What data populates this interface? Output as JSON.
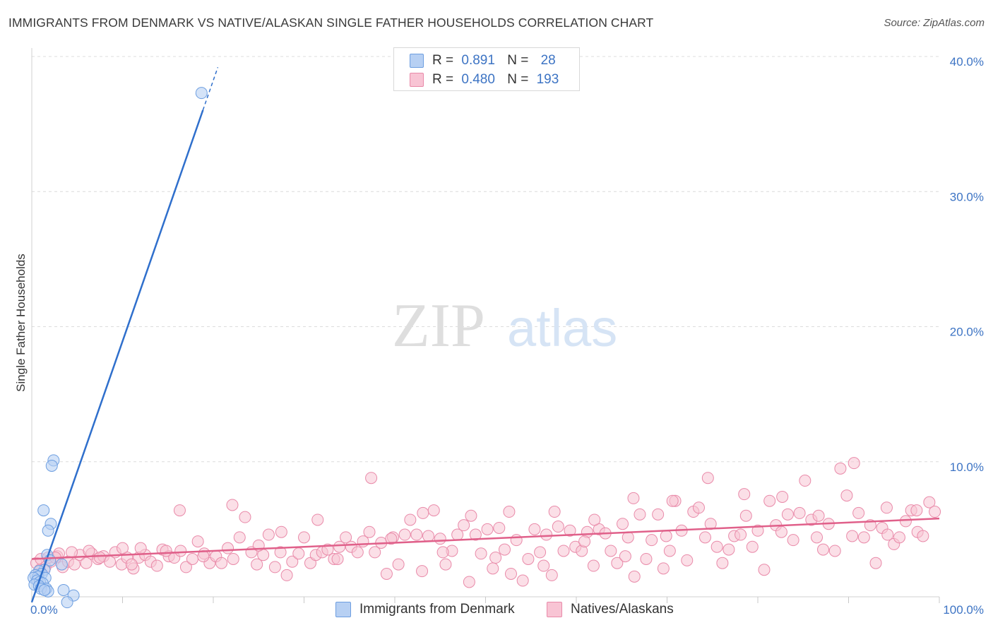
{
  "title": "IMMIGRANTS FROM DENMARK VS NATIVE/ALASKAN SINGLE FATHER HOUSEHOLDS CORRELATION CHART",
  "source": "Source: ZipAtlas.com",
  "watermark": {
    "zip": "ZIP",
    "atlas": "atlas"
  },
  "legend": [
    {
      "r_label": "R =",
      "r_value": "0.891",
      "n_label": "N =",
      "n_value": "28"
    },
    {
      "r_label": "R =",
      "r_value": "0.480",
      "n_label": "N =",
      "n_value": "193"
    }
  ],
  "colors": {
    "blue_fill": "#b7d0f3",
    "blue_stroke": "#6d9ee0",
    "blue_line": "#2f6fcc",
    "pink_fill": "#f8c4d4",
    "pink_stroke": "#e98aa9",
    "pink_line": "#e0608a",
    "axis_text": "#3d74c4",
    "grid": "#dcdcdc"
  },
  "chart_data": {
    "type": "scatter",
    "title": "IMMIGRANTS FROM DENMARK VS NATIVE/ALASKAN SINGLE FATHER HOUSEHOLDS CORRELATION CHART",
    "xlabel": "",
    "ylabel": "Single Father Households",
    "xlim": [
      0,
      100
    ],
    "ylim": [
      0,
      40
    ],
    "x_tick_labels": [
      "0.0%",
      "100.0%"
    ],
    "y_ticks": [
      10,
      20,
      30,
      40
    ],
    "y_tick_labels": [
      "10.0%",
      "20.0%",
      "30.0%",
      "40.0%"
    ],
    "legend_position": "top-center",
    "series": [
      {
        "name": "Immigrants from Denmark",
        "r": 0.891,
        "n": 28,
        "points": [
          [
            18.7,
            37.3
          ],
          [
            2.4,
            10.1
          ],
          [
            2.2,
            9.7
          ],
          [
            1.3,
            6.4
          ],
          [
            2.1,
            5.4
          ],
          [
            1.8,
            4.9
          ],
          [
            1.7,
            3.1
          ],
          [
            2.0,
            2.7
          ],
          [
            3.3,
            2.4
          ],
          [
            1.4,
            2.0
          ],
          [
            0.8,
            1.9
          ],
          [
            1.1,
            1.7
          ],
          [
            0.4,
            1.6
          ],
          [
            0.7,
            1.5
          ],
          [
            1.5,
            1.4
          ],
          [
            0.2,
            1.4
          ],
          [
            0.6,
            1.2
          ],
          [
            0.9,
            1.1
          ],
          [
            1.2,
            1.0
          ],
          [
            0.3,
            0.9
          ],
          [
            1.6,
            0.6
          ],
          [
            0.8,
            0.8
          ],
          [
            1.0,
            0.6
          ],
          [
            1.8,
            0.4
          ],
          [
            1.4,
            0.5
          ],
          [
            3.5,
            0.5
          ],
          [
            4.6,
            0.1
          ],
          [
            3.9,
            -0.4
          ]
        ],
        "trend": [
          [
            0.0,
            -0.4
          ],
          [
            20.5,
            39.2
          ]
        ]
      },
      {
        "name": "Natives/Alaskans",
        "r": 0.48,
        "n": 193,
        "points": [
          [
            0.5,
            2.5
          ],
          [
            1.0,
            2.8
          ],
          [
            1.5,
            2.2
          ],
          [
            2.1,
            2.6
          ],
          [
            2.8,
            3.0
          ],
          [
            3.4,
            2.2
          ],
          [
            4.0,
            2.6
          ],
          [
            4.7,
            2.4
          ],
          [
            5.3,
            3.1
          ],
          [
            6.0,
            2.5
          ],
          [
            6.6,
            3.2
          ],
          [
            7.3,
            2.8
          ],
          [
            7.9,
            3.0
          ],
          [
            8.6,
            2.6
          ],
          [
            9.2,
            3.3
          ],
          [
            9.9,
            2.4
          ],
          [
            10.5,
            2.9
          ],
          [
            11.2,
            2.1
          ],
          [
            11.8,
            2.9
          ],
          [
            12.5,
            3.1
          ],
          [
            13.1,
            2.6
          ],
          [
            13.8,
            2.3
          ],
          [
            14.4,
            3.5
          ],
          [
            15.1,
            3.0
          ],
          [
            15.7,
            2.9
          ],
          [
            16.4,
            3.4
          ],
          [
            17.0,
            2.2
          ],
          [
            17.7,
            2.8
          ],
          [
            18.3,
            4.1
          ],
          [
            19.0,
            3.2
          ],
          [
            19.6,
            2.5
          ],
          [
            20.3,
            3.0
          ],
          [
            20.9,
            2.5
          ],
          [
            21.6,
            3.6
          ],
          [
            22.2,
            2.8
          ],
          [
            22.9,
            4.4
          ],
          [
            23.5,
            5.9
          ],
          [
            24.2,
            3.3
          ],
          [
            24.8,
            2.4
          ],
          [
            25.5,
            3.1
          ],
          [
            26.1,
            4.6
          ],
          [
            26.8,
            2.2
          ],
          [
            27.4,
            3.3
          ],
          [
            28.1,
            1.6
          ],
          [
            28.7,
            2.6
          ],
          [
            29.4,
            3.2
          ],
          [
            30.0,
            4.4
          ],
          [
            30.7,
            2.5
          ],
          [
            31.3,
            3.1
          ],
          [
            32.0,
            3.3
          ],
          [
            32.6,
            3.5
          ],
          [
            33.3,
            2.8
          ],
          [
            33.9,
            3.7
          ],
          [
            34.6,
            4.4
          ],
          [
            35.2,
            3.7
          ],
          [
            35.9,
            3.3
          ],
          [
            36.5,
            4.1
          ],
          [
            37.2,
            4.8
          ],
          [
            37.8,
            3.3
          ],
          [
            38.5,
            4.0
          ],
          [
            39.1,
            1.7
          ],
          [
            39.8,
            4.4
          ],
          [
            40.4,
            2.4
          ],
          [
            41.1,
            4.6
          ],
          [
            41.7,
            5.7
          ],
          [
            42.4,
            4.6
          ],
          [
            43.0,
            1.9
          ],
          [
            43.7,
            4.5
          ],
          [
            44.3,
            6.4
          ],
          [
            45.0,
            4.3
          ],
          [
            45.6,
            2.4
          ],
          [
            46.3,
            3.4
          ],
          [
            46.9,
            4.6
          ],
          [
            47.6,
            5.3
          ],
          [
            48.2,
            1.1
          ],
          [
            48.9,
            4.6
          ],
          [
            49.5,
            3.2
          ],
          [
            50.2,
            5.0
          ],
          [
            50.8,
            2.1
          ],
          [
            51.5,
            5.1
          ],
          [
            52.1,
            3.5
          ],
          [
            52.8,
            1.7
          ],
          [
            53.4,
            4.2
          ],
          [
            54.1,
            1.2
          ],
          [
            54.7,
            2.8
          ],
          [
            55.4,
            5.0
          ],
          [
            56.0,
            3.3
          ],
          [
            56.7,
            4.6
          ],
          [
            57.3,
            1.6
          ],
          [
            58.0,
            5.2
          ],
          [
            58.6,
            3.4
          ],
          [
            59.3,
            4.9
          ],
          [
            59.9,
            3.7
          ],
          [
            60.6,
            3.4
          ],
          [
            61.2,
            4.8
          ],
          [
            61.9,
            2.3
          ],
          [
            62.5,
            5.0
          ],
          [
            63.2,
            4.7
          ],
          [
            63.8,
            3.4
          ],
          [
            64.5,
            2.5
          ],
          [
            65.1,
            5.4
          ],
          [
            65.7,
            4.4
          ],
          [
            66.4,
            1.5
          ],
          [
            67.0,
            6.1
          ],
          [
            67.7,
            2.8
          ],
          [
            68.3,
            4.2
          ],
          [
            69.0,
            6.1
          ],
          [
            69.6,
            2.1
          ],
          [
            70.3,
            3.4
          ],
          [
            70.9,
            7.1
          ],
          [
            71.6,
            4.9
          ],
          [
            72.2,
            2.7
          ],
          [
            72.9,
            6.3
          ],
          [
            73.5,
            6.6
          ],
          [
            74.2,
            4.4
          ],
          [
            74.8,
            5.4
          ],
          [
            75.5,
            3.7
          ],
          [
            76.1,
            2.5
          ],
          [
            76.8,
            3.5
          ],
          [
            77.4,
            4.5
          ],
          [
            78.1,
            4.6
          ],
          [
            78.7,
            6.0
          ],
          [
            79.4,
            3.7
          ],
          [
            80.0,
            4.9
          ],
          [
            80.7,
            2.0
          ],
          [
            81.3,
            7.1
          ],
          [
            82.0,
            5.3
          ],
          [
            82.6,
            4.8
          ],
          [
            83.3,
            6.1
          ],
          [
            83.9,
            4.2
          ],
          [
            84.6,
            6.2
          ],
          [
            85.2,
            8.6
          ],
          [
            85.9,
            5.7
          ],
          [
            86.5,
            4.4
          ],
          [
            87.2,
            3.5
          ],
          [
            87.8,
            5.4
          ],
          [
            88.5,
            3.4
          ],
          [
            89.1,
            9.5
          ],
          [
            89.8,
            7.5
          ],
          [
            90.4,
            4.5
          ],
          [
            91.1,
            6.2
          ],
          [
            91.7,
            4.4
          ],
          [
            92.4,
            5.3
          ],
          [
            93.0,
            2.5
          ],
          [
            93.7,
            5.1
          ],
          [
            94.3,
            4.6
          ],
          [
            95.0,
            3.9
          ],
          [
            95.6,
            4.4
          ],
          [
            96.3,
            5.6
          ],
          [
            96.9,
            6.4
          ],
          [
            97.6,
            4.8
          ],
          [
            98.2,
            4.5
          ],
          [
            98.9,
            7.0
          ],
          [
            99.5,
            6.3
          ],
          [
            1.8,
            2.9
          ],
          [
            3.0,
            3.2
          ],
          [
            6.3,
            3.4
          ],
          [
            10.0,
            3.6
          ],
          [
            12.0,
            3.6
          ],
          [
            16.3,
            6.4
          ],
          [
            22.1,
            6.8
          ],
          [
            27.5,
            4.8
          ],
          [
            31.5,
            5.7
          ],
          [
            37.4,
            8.8
          ],
          [
            43.1,
            6.2
          ],
          [
            48.4,
            6.0
          ],
          [
            52.6,
            6.3
          ],
          [
            57.6,
            6.3
          ],
          [
            62.0,
            5.7
          ],
          [
            66.3,
            7.3
          ],
          [
            70.6,
            7.1
          ],
          [
            74.5,
            8.8
          ],
          [
            78.5,
            7.6
          ],
          [
            82.7,
            7.4
          ],
          [
            86.7,
            6.0
          ],
          [
            90.6,
            9.9
          ],
          [
            94.2,
            6.6
          ],
          [
            97.5,
            6.4
          ],
          [
            0.9,
            2.0
          ],
          [
            2.6,
            2.9
          ],
          [
            4.4,
            3.3
          ],
          [
            7.5,
            2.9
          ],
          [
            11.0,
            2.4
          ],
          [
            14.8,
            3.4
          ],
          [
            18.9,
            3.0
          ],
          [
            25.0,
            3.8
          ],
          [
            33.7,
            2.8
          ],
          [
            39.6,
            4.3
          ],
          [
            45.3,
            3.3
          ],
          [
            51.1,
            2.9
          ],
          [
            56.4,
            2.3
          ],
          [
            60.9,
            4.1
          ],
          [
            65.4,
            3.0
          ],
          [
            69.9,
            4.5
          ]
        ],
        "trend": [
          [
            0.0,
            2.8
          ],
          [
            100.0,
            5.8
          ]
        ]
      }
    ]
  }
}
